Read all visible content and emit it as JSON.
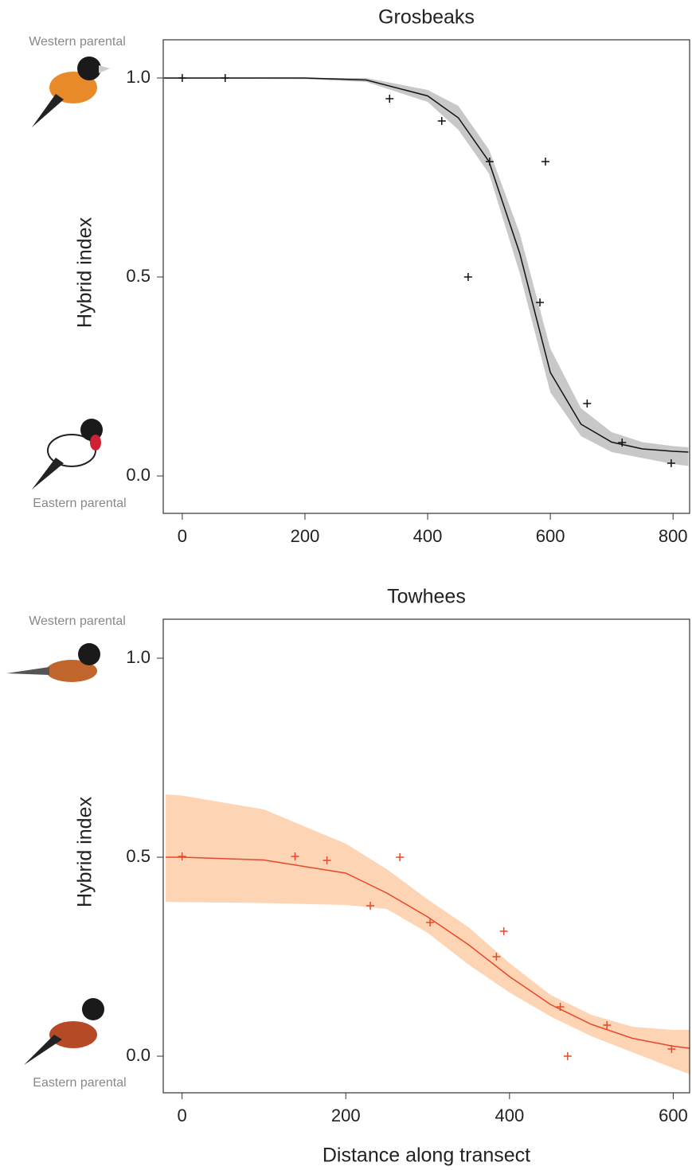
{
  "chart_data": [
    {
      "type": "scatter",
      "title": "Grosbeaks",
      "y_label": "Hybrid index",
      "annotations": [
        "Western parental",
        "Eastern parental"
      ],
      "color": "#111111",
      "band_color": "#c8c8c8",
      "points": {
        "x": [
          0,
          70,
          338,
          423,
          466,
          501,
          592,
          583,
          660,
          717,
          797
        ],
        "values": [
          1.0,
          1.0,
          0.948,
          0.892,
          0.5,
          0.79,
          0.79,
          0.436,
          0.182,
          0.084,
          0.032
        ]
      },
      "fit": {
        "x": [
          -30,
          0,
          100,
          200,
          300,
          400,
          450,
          500,
          550,
          600,
          650,
          700,
          750,
          800,
          825
        ],
        "values": [
          1.0,
          1.0,
          1.0,
          1.0,
          0.995,
          0.955,
          0.9,
          0.79,
          0.56,
          0.26,
          0.13,
          0.085,
          0.068,
          0.062,
          0.06
        ],
        "upper": [
          1.0,
          1.0,
          1.0,
          1.0,
          1.0,
          0.97,
          0.93,
          0.82,
          0.61,
          0.32,
          0.17,
          0.11,
          0.085,
          0.075,
          0.072
        ],
        "lower": [
          0.998,
          0.998,
          0.998,
          0.997,
          0.99,
          0.94,
          0.87,
          0.76,
          0.51,
          0.21,
          0.1,
          0.06,
          0.045,
          0.03,
          0.025
        ]
      },
      "xlim": [
        -31,
        827
      ],
      "ylim": [
        -0.094,
        1.096
      ],
      "xticks": [
        0,
        200,
        400,
        600,
        800
      ],
      "yticks": [
        {
          "value": 0,
          "label": "0.0"
        },
        0.5,
        {
          "value": 1,
          "label": "1.0"
        }
      ]
    },
    {
      "type": "scatter",
      "title": "Towhees",
      "y_label": "Hybrid index",
      "x_label": "Distance along transect",
      "annotations": [
        "Western parental",
        "Eastern parental"
      ],
      "color": "#e8482a",
      "band_color": "#fdd4b4",
      "points": {
        "x": [
          0,
          138,
          177,
          230,
          266,
          303,
          384,
          393,
          462,
          471,
          519,
          598
        ],
        "values": [
          0.502,
          0.502,
          0.492,
          0.378,
          0.5,
          0.336,
          0.25,
          0.314,
          0.124,
          0.0,
          0.078,
          0.018
        ]
      },
      "fit": {
        "x": [
          -20,
          0,
          100,
          200,
          250,
          300,
          350,
          400,
          450,
          500,
          550,
          600,
          620
        ],
        "values": [
          0.5,
          0.5,
          0.493,
          0.46,
          0.41,
          0.35,
          0.28,
          0.2,
          0.13,
          0.08,
          0.045,
          0.025,
          0.02
        ],
        "upper": [
          0.658,
          0.655,
          0.62,
          0.534,
          0.47,
          0.394,
          0.324,
          0.234,
          0.154,
          0.104,
          0.074,
          0.066,
          0.066
        ],
        "lower": [
          0.388,
          0.387,
          0.385,
          0.38,
          0.37,
          0.31,
          0.23,
          0.16,
          0.1,
          0.05,
          0.01,
          -0.03,
          -0.045
        ]
      },
      "xlim": [
        -23,
        620
      ],
      "ylim": [
        -0.092,
        1.098
      ],
      "xticks": [
        0,
        200,
        400,
        600
      ],
      "yticks": [
        {
          "value": 0,
          "label": "0.0"
        },
        0.5,
        {
          "value": 1,
          "label": "1.0"
        }
      ]
    }
  ]
}
